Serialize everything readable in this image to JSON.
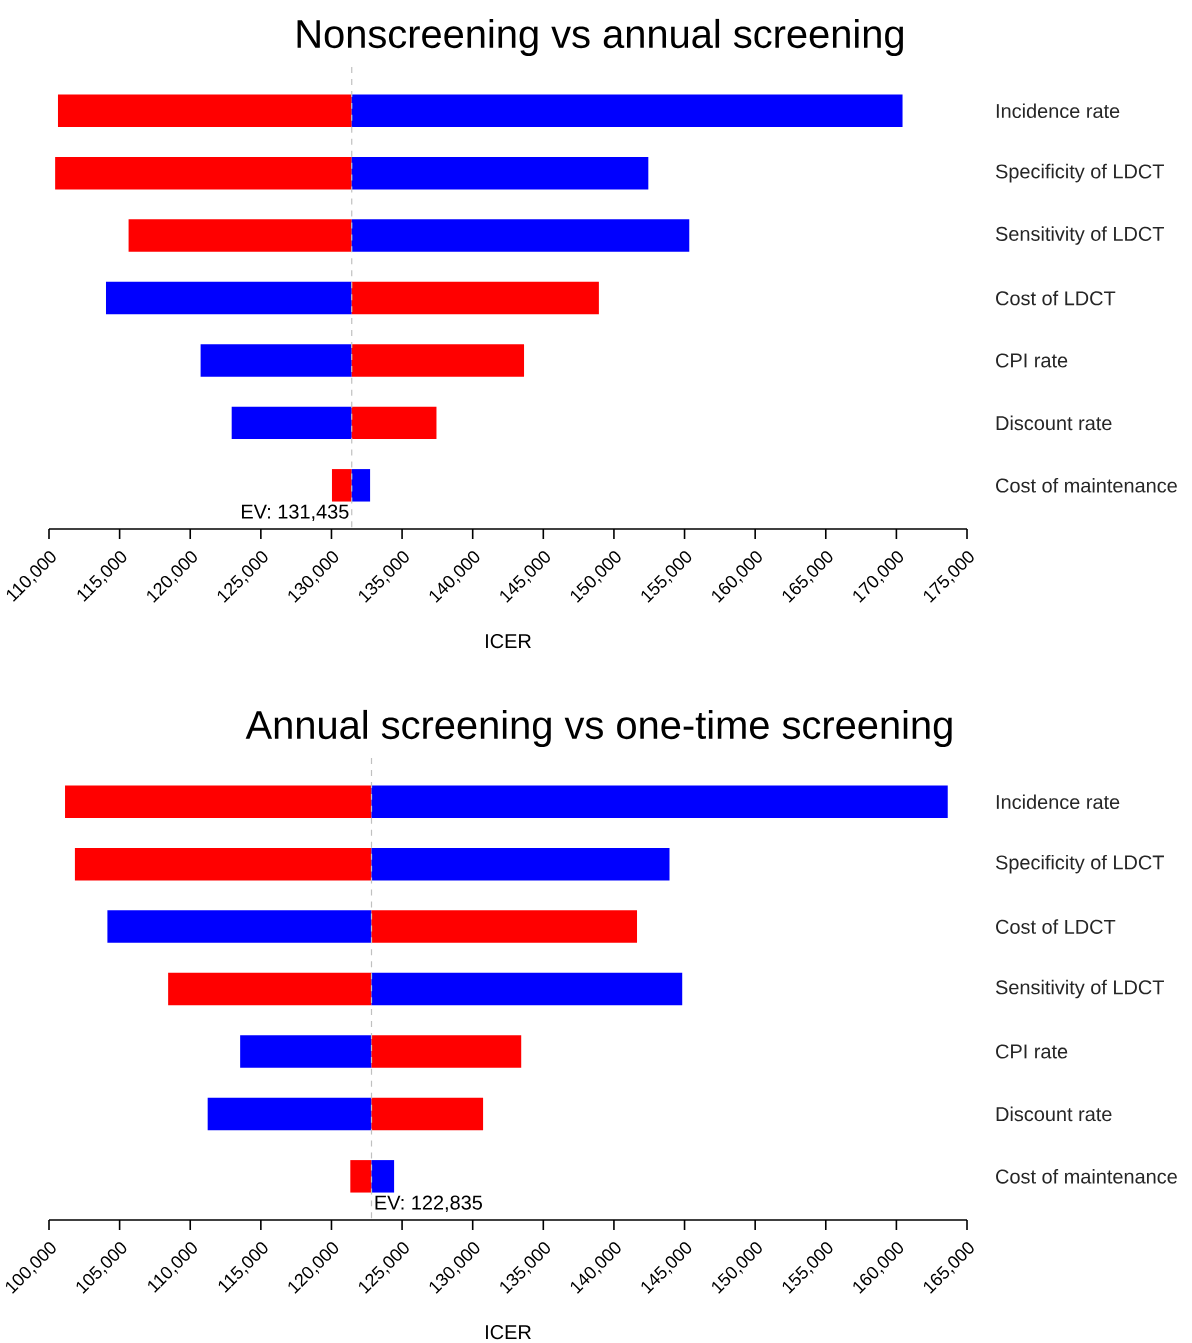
{
  "chart_data": [
    {
      "type": "bar",
      "orientation": "horizontal",
      "title": "Nonscreening vs annual screening",
      "xlabel": "ICER",
      "categories": [
        "Incidence  rate",
        "Specificity  of  LDCT",
        "Sensitivity  of  LDCT",
        "Cost  of  LDCT",
        "CPI  rate",
        "Discount  rate",
        "Cost  of  maintenance"
      ],
      "series": [
        {
          "colors": [
            "#ff0000",
            "#ff0000",
            "#ff0000",
            "#0000ff",
            "#0000ff",
            "#0000ff",
            "#ff0000"
          ],
          "base": [
            131435,
            131435,
            131435,
            131435,
            131435,
            131435,
            131435
          ],
          "values": [
            -20800,
            -21000,
            -15800,
            -17400,
            -10700,
            -8500,
            -1400
          ]
        },
        {
          "colors": [
            "#0000ff",
            "#0000ff",
            "#0000ff",
            "#ff0000",
            "#ff0000",
            "#ff0000",
            "#0000ff"
          ],
          "base": [
            131435,
            131435,
            131435,
            131435,
            131435,
            131435,
            131435
          ],
          "values": [
            39000,
            21000,
            23900,
            17500,
            12200,
            6000,
            1300
          ]
        }
      ],
      "xlim": [
        110000,
        175000
      ],
      "xticks": [
        {
          "value": 110000,
          "label": "110,000"
        },
        {
          "value": 115000,
          "label": "115,000"
        },
        {
          "value": 120000,
          "label": "120,000"
        },
        {
          "value": 125000,
          "label": "125,000"
        },
        {
          "value": 130000,
          "label": "130,000"
        },
        {
          "value": 135000,
          "label": "135,000"
        },
        {
          "value": 140000,
          "label": "140,000"
        },
        {
          "value": 145000,
          "label": "145,000"
        },
        {
          "value": 150000,
          "label": "150,000"
        },
        {
          "value": 155000,
          "label": "155,000"
        },
        {
          "value": 160000,
          "label": "160,000"
        },
        {
          "value": 165000,
          "label": "165,000"
        },
        {
          "value": 170000,
          "label": "170,000"
        },
        {
          "value": 175000,
          "label": "175,000"
        }
      ],
      "ref_lines": [
        {
          "axis": "x",
          "value": 131435,
          "label": "EV: 131,435",
          "color": "#c0c0c0",
          "line_style": "dashed"
        }
      ]
    },
    {
      "type": "bar",
      "orientation": "horizontal",
      "title": "Annual screening vs one-time screening",
      "xlabel": "ICER",
      "categories": [
        "Incidence  rate",
        "Specificity  of  LDCT",
        "Cost  of  LDCT",
        "Sensitivity  of  LDCT",
        "CPI  rate",
        "Discount  rate",
        "Cost  of  maintenance"
      ],
      "series": [
        {
          "colors": [
            "#ff0000",
            "#ff0000",
            "#0000ff",
            "#ff0000",
            "#0000ff",
            "#0000ff",
            "#ff0000"
          ],
          "base": [
            122835,
            122835,
            122835,
            122835,
            122835,
            122835,
            122835
          ],
          "values": [
            -21700,
            -21000,
            -18700,
            -14400,
            -9300,
            -11600,
            -1500
          ]
        },
        {
          "colors": [
            "#0000ff",
            "#0000ff",
            "#ff0000",
            "#0000ff",
            "#ff0000",
            "#ff0000",
            "#0000ff"
          ],
          "base": [
            122835,
            122835,
            122835,
            122835,
            122835,
            122835,
            122835
          ],
          "values": [
            40800,
            21100,
            18800,
            22000,
            10600,
            7900,
            1600
          ]
        }
      ],
      "xlim": [
        100000,
        165000
      ],
      "xticks": [
        {
          "value": 100000,
          "label": "100,000"
        },
        {
          "value": 105000,
          "label": "105,000"
        },
        {
          "value": 110000,
          "label": "110,000"
        },
        {
          "value": 115000,
          "label": "115,000"
        },
        {
          "value": 120000,
          "label": "120,000"
        },
        {
          "value": 125000,
          "label": "125,000"
        },
        {
          "value": 130000,
          "label": "130,000"
        },
        {
          "value": 135000,
          "label": "135,000"
        },
        {
          "value": 140000,
          "label": "140,000"
        },
        {
          "value": 145000,
          "label": "145,000"
        },
        {
          "value": 150000,
          "label": "150,000"
        },
        {
          "value": 155000,
          "label": "155,000"
        },
        {
          "value": 160000,
          "label": "160,000"
        },
        {
          "value": 165000,
          "label": "165,000"
        }
      ],
      "ref_lines": [
        {
          "axis": "x",
          "value": 122835,
          "label": "EV: 122,835",
          "color": "#c0c0c0",
          "line_style": "dashed"
        }
      ]
    }
  ]
}
